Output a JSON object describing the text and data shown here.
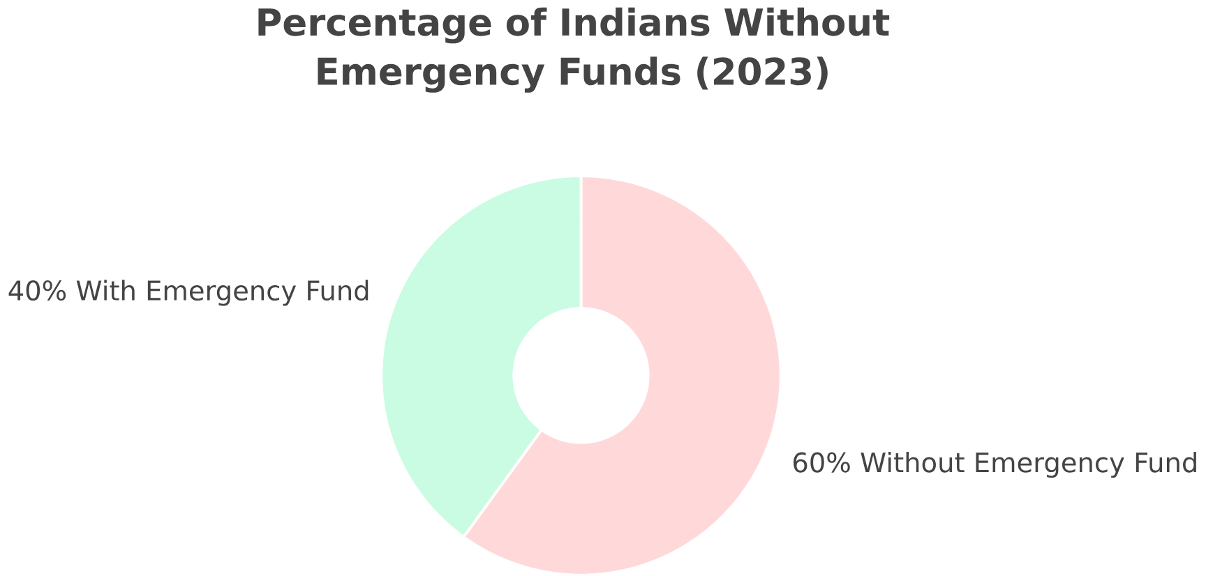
{
  "chart_data": {
    "type": "donut",
    "title": "Percentage of Indians Without Emergency Funds (2023)",
    "categories": [
      "Without Emergency Fund",
      "With Emergency Fund"
    ],
    "values": [
      60,
      40
    ],
    "value_labels": [
      "60%",
      "40%"
    ],
    "colors": [
      "#ffd9d9",
      "#c9fce3"
    ]
  }
}
